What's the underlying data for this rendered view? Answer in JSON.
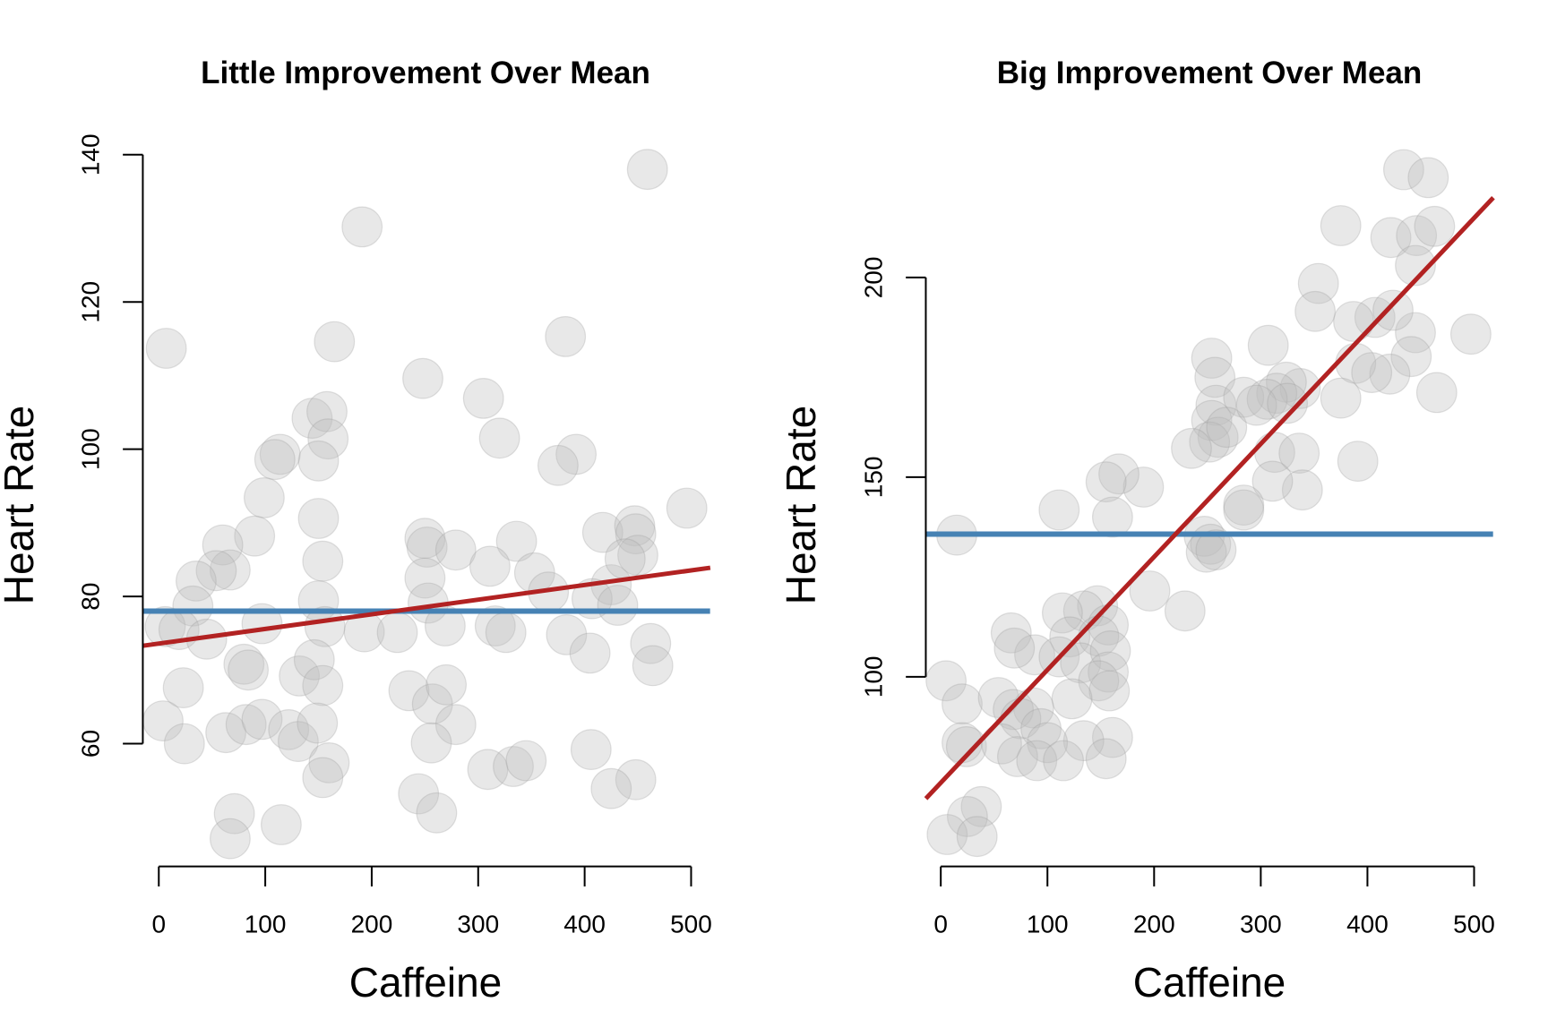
{
  "chart_data": [
    {
      "type": "scatter",
      "title": "Little Improvement Over Mean",
      "xlabel": "Caffeine",
      "ylabel": "Heart Rate",
      "xlim": [
        -15,
        518
      ],
      "ylim": [
        44,
        140
      ],
      "xticks": [
        0,
        100,
        200,
        300,
        400,
        500
      ],
      "yticks": [
        60,
        80,
        100,
        120,
        140
      ],
      "grid": false,
      "legend": "none",
      "colors": {
        "points": "#BEBEBE",
        "point_border": "#9A9A9A",
        "mean_line": "#4682B4",
        "fit_line": "#B22222"
      },
      "mean_line": {
        "y": 78.0
      },
      "fit_line": {
        "x": [
          -15,
          518
        ],
        "y": [
          73.3,
          83.9
        ]
      },
      "points": {
        "x": [
          7,
          459,
          191,
          165,
          382,
          248,
          305,
          144,
          158,
          159,
          150,
          320,
          392,
          375,
          114,
          109,
          99,
          150,
          496,
          90,
          60,
          250,
          252,
          279,
          336,
          417,
          447,
          448,
          67,
          54,
          35,
          154,
          250,
          311,
          353,
          425,
          450,
          438,
          32,
          150,
          253,
          366,
          407,
          431,
          6,
          19,
          45,
          97,
          156,
          193,
          224,
          269,
          316,
          326,
          383,
          462,
          23,
          80,
          84,
          132,
          146,
          154,
          235,
          257,
          270,
          405,
          464,
          4,
          24,
          63,
          82,
          97,
          122,
          131,
          149,
          279,
          256,
          160,
          154,
          309,
          333,
          345,
          406,
          448,
          425,
          244,
          261,
          71,
          67,
          115
        ],
        "y": [
          113.7,
          138,
          130.2,
          114.6,
          115.3,
          109.6,
          106.9,
          104.2,
          105.1,
          101.4,
          98.4,
          101.5,
          99.3,
          97.8,
          99.3,
          98.6,
          93.4,
          90.6,
          92,
          88.2,
          87,
          87.9,
          86.7,
          86.3,
          87.5,
          88.7,
          89.6,
          88.5,
          83.6,
          83.5,
          82.1,
          84.8,
          82.5,
          84.1,
          83.2,
          81.6,
          85.6,
          85.1,
          78.7,
          79.4,
          79.1,
          80.6,
          79.7,
          78.8,
          75.9,
          75.5,
          74.2,
          76.3,
          75.9,
          75.2,
          75.1,
          76,
          76,
          75.1,
          74.8,
          73.6,
          67.6,
          70.8,
          70,
          69.2,
          71.4,
          67.9,
          67.2,
          65.4,
          68,
          72.3,
          70.6,
          63.1,
          60,
          61.5,
          62.6,
          63.3,
          61.9,
          60.3,
          62.8,
          62.6,
          60.1,
          57.4,
          55.4,
          56.5,
          56.9,
          57.7,
          59.2,
          55.1,
          53.9,
          53.2,
          50.6,
          50.5,
          47.1,
          49
        ]
      }
    },
    {
      "type": "scatter",
      "title": "Big Improvement Over Mean",
      "xlabel": "Caffeine",
      "ylabel": "Heart Rate",
      "xlim": [
        -14,
        518
      ],
      "ylim": [
        52,
        230
      ],
      "xticks": [
        0,
        100,
        200,
        300,
        400,
        500
      ],
      "yticks": [
        100,
        150,
        200
      ],
      "grid": false,
      "legend": "none",
      "colors": {
        "points": "#BEBEBE",
        "point_border": "#9A9A9A",
        "mean_line": "#4682B4",
        "fit_line": "#B22222"
      },
      "mean_line": {
        "y": 135.75
      },
      "fit_line": {
        "x": [
          -14,
          518
        ],
        "y": [
          69.5,
          220
        ]
      },
      "points": {
        "x": [
          434,
          457,
          375,
          422,
          446,
          463,
          445,
          354,
          497,
          445,
          407,
          424,
          387,
          351,
          307,
          441,
          421,
          389,
          404,
          465,
          337,
          375,
          324,
          315,
          254,
          257,
          258,
          284,
          254,
          260,
          252,
          268,
          235,
          306,
          296,
          325,
          313,
          336,
          339,
          391,
          311,
          284,
          284,
          190,
          167,
          155,
          161,
          111,
          15,
          247,
          253,
          249,
          258,
          196,
          229,
          147,
          134,
          114,
          157,
          121,
          148,
          66,
          88,
          69,
          111,
          131,
          159,
          157,
          148,
          158,
          5,
          20,
          123,
          54,
          87,
          68,
          75,
          94,
          161,
          134,
          100,
          20,
          24,
          57,
          72,
          90,
          115,
          155,
          38,
          25,
          6,
          34
        ],
        "y": [
          227,
          225,
          213,
          210,
          210.5,
          212.8,
          203,
          198.5,
          185.8,
          186.2,
          190,
          191.8,
          189,
          191.5,
          183,
          180.2,
          175.8,
          178.5,
          176.2,
          171.2,
          172.2,
          169.8,
          173.8,
          171,
          179.8,
          175,
          168,
          170,
          164.2,
          160,
          158.8,
          162.5,
          157.2,
          169.5,
          168,
          168.5,
          156.2,
          156,
          146.8,
          154,
          149,
          143,
          141.8,
          147.5,
          150.8,
          148.8,
          140,
          141.8,
          135.5,
          135.2,
          133.2,
          131.2,
          131.8,
          121.5,
          116.5,
          117.8,
          116.5,
          116,
          113,
          110,
          110.2,
          111,
          105.5,
          107.2,
          105,
          103.5,
          106.5,
          101.2,
          99,
          96.5,
          99,
          93.2,
          94.5,
          94.8,
          92.2,
          91.8,
          89.5,
          87,
          84.8,
          84,
          83.5,
          83.5,
          82.5,
          83.2,
          80,
          79,
          79,
          79.5,
          67.5,
          65,
          60.5,
          60
        ]
      }
    }
  ]
}
